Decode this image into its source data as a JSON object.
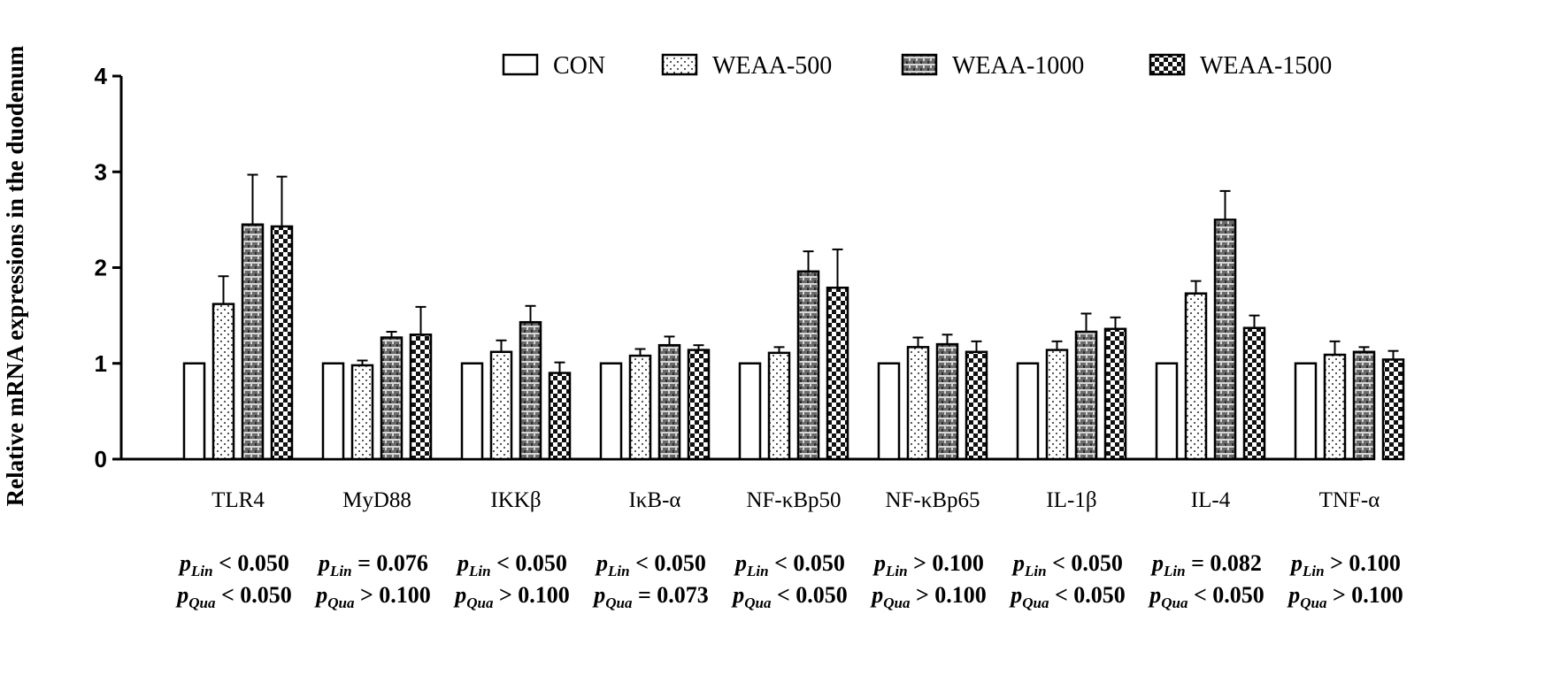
{
  "chart_data": {
    "type": "bar",
    "title": "",
    "xlabel": "",
    "ylabel": "Relative mRNA expressions in the duodenum",
    "ylim": [
      0,
      4
    ],
    "yticks": [
      "0",
      "1",
      "2",
      "3",
      "4"
    ],
    "legend_position": "top-right",
    "categories": [
      "TLR4",
      "MyD88",
      "IKKβ",
      "IκB-α",
      "NF-κBp50",
      "NF-κBp65",
      "IL-1β",
      "IL-4",
      "TNF-α"
    ],
    "series": [
      {
        "name": "CON",
        "pattern": "white",
        "values": [
          1.0,
          1.0,
          1.0,
          1.0,
          1.0,
          1.0,
          1.0,
          1.0,
          1.0
        ],
        "errors": [
          0,
          0,
          0,
          0,
          0,
          0,
          0,
          0,
          0
        ]
      },
      {
        "name": "WEAA-500",
        "pattern": "dots",
        "values": [
          1.62,
          0.98,
          1.12,
          1.08,
          1.11,
          1.17,
          1.14,
          1.73,
          1.09
        ],
        "errors": [
          0.29,
          0.05,
          0.12,
          0.07,
          0.06,
          0.1,
          0.09,
          0.13,
          0.14
        ]
      },
      {
        "name": "WEAA-1000",
        "pattern": "grid",
        "values": [
          2.45,
          1.27,
          1.43,
          1.19,
          1.96,
          1.2,
          1.33,
          2.5,
          1.12
        ],
        "errors": [
          0.52,
          0.06,
          0.17,
          0.09,
          0.21,
          0.1,
          0.19,
          0.3,
          0.05
        ]
      },
      {
        "name": "WEAA-1500",
        "pattern": "checker",
        "values": [
          2.43,
          1.3,
          0.9,
          1.14,
          1.79,
          1.12,
          1.36,
          1.37,
          1.04
        ],
        "errors": [
          0.52,
          0.29,
          0.11,
          0.05,
          0.4,
          0.11,
          0.12,
          0.13,
          0.09
        ]
      }
    ],
    "annotations": [
      {
        "category": "TLR4",
        "lin": "< 0.050",
        "qua": "< 0.050"
      },
      {
        "category": "MyD88",
        "lin": "= 0.076",
        "qua": "> 0.100"
      },
      {
        "category": "IKKβ",
        "lin": "< 0.050",
        "qua": "> 0.100"
      },
      {
        "category": "IκB-α",
        "lin": "< 0.050",
        "qua": "= 0.073"
      },
      {
        "category": "NF-κBp50",
        "lin": "< 0.050",
        "qua": "< 0.050"
      },
      {
        "category": "NF-κBp65",
        "lin": "> 0.100",
        "qua": "> 0.100"
      },
      {
        "category": "IL-1β",
        "lin": "< 0.050",
        "qua": "< 0.050"
      },
      {
        "category": "IL-4",
        "lin": "= 0.082",
        "qua": "< 0.050"
      },
      {
        "category": "TNF-α",
        "lin": "> 0.100",
        "qua": "> 0.100"
      }
    ],
    "annotation_labels": {
      "p": "p",
      "lin": "Lin",
      "qua": "Qua"
    }
  }
}
